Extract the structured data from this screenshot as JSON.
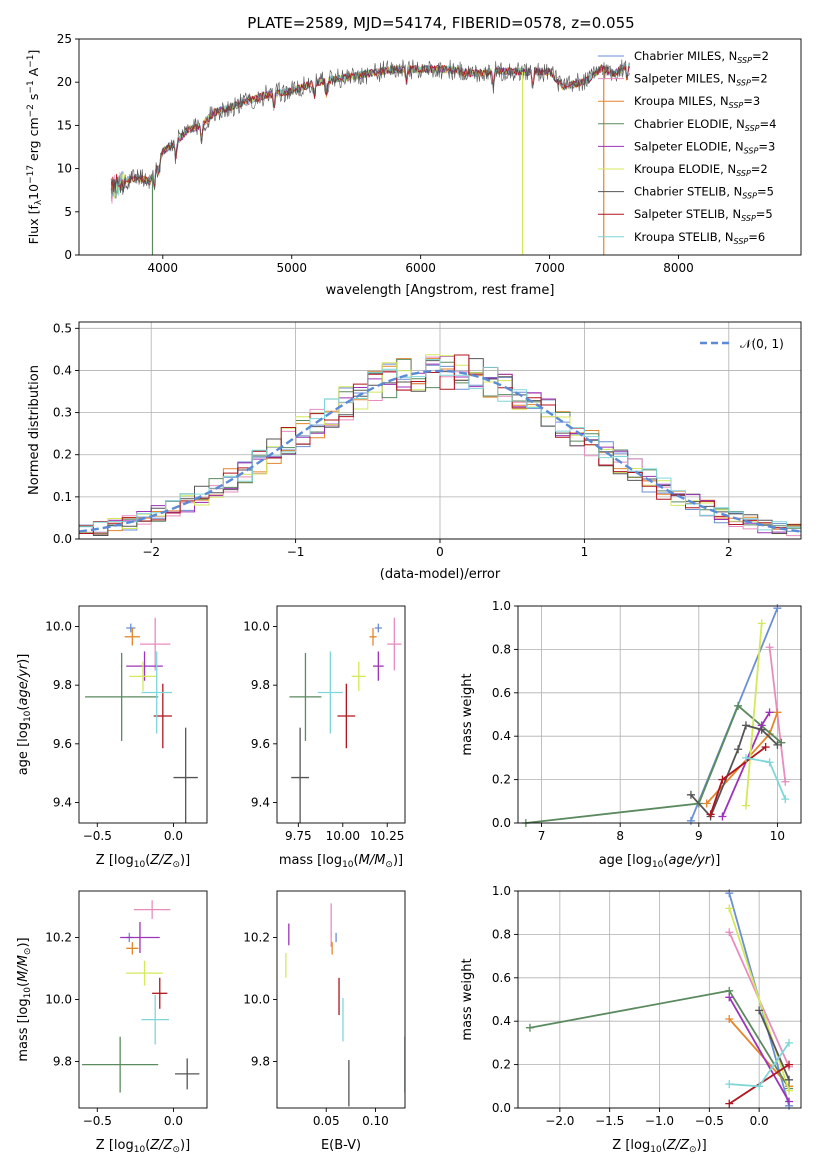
{
  "figure": {
    "title": "PLATE=2589, MJD=54174, FIBERID=0578, z=0.055"
  },
  "series_styles": [
    {
      "name": "Chabrier MILES",
      "nssp": "2",
      "color": "#6a8fd4"
    },
    {
      "name": "Salpeter MILES",
      "nssp": "2",
      "color": "#e88cbf"
    },
    {
      "name": "Kroupa MILES",
      "nssp": "3",
      "color": "#e3862c"
    },
    {
      "name": "Chabrier ELODIE",
      "nssp": "4",
      "color": "#5a8a5e"
    },
    {
      "name": "Salpeter ELODIE",
      "nssp": "3",
      "color": "#9c33b8"
    },
    {
      "name": "Kroupa ELODIE",
      "nssp": "2",
      "color": "#d4e85a"
    },
    {
      "name": "Chabrier STELIB",
      "nssp": "5",
      "color": "#555555"
    },
    {
      "name": "Salpeter STELIB",
      "nssp": "5",
      "color": "#b0151f"
    },
    {
      "name": "Kroupa STELIB",
      "nssp": "6",
      "color": "#7fd6d9"
    }
  ],
  "chart_data": [
    {
      "id": "spectrum",
      "type": "line",
      "xlabel": "wavelength [Angstrom, rest frame]",
      "ylabel": "Flux [f_λ10^-17 erg cm^-2 s^-1 A^-1]",
      "xlim": [
        3350,
        8950
      ],
      "ylim": [
        0,
        25
      ],
      "xticks": [
        4000,
        5000,
        6000,
        7000,
        8000
      ],
      "yticks": [
        0,
        5,
        10,
        15,
        20,
        25
      ],
      "continuum": {
        "x": [
          3600,
          3700,
          3800,
          3900,
          4000,
          4100,
          4200,
          4300,
          4400,
          4500,
          4600,
          4800,
          5000,
          5200,
          5400,
          5600,
          5800,
          6000,
          6200,
          6400,
          6600,
          6800,
          7000,
          7100,
          7200,
          7300,
          7400,
          7500,
          7600
        ],
        "y": [
          7.5,
          8.5,
          9.0,
          8.5,
          12.0,
          13.0,
          14.5,
          15.0,
          16.5,
          17.0,
          17.5,
          18.5,
          19.0,
          20.0,
          20.5,
          21.0,
          21.5,
          21.5,
          21.5,
          21.0,
          21.3,
          21.2,
          21.2,
          19.5,
          19.8,
          20.3,
          21.6,
          21.0,
          22.0
        ]
      },
      "legend": {
        "position": "upper right"
      }
    },
    {
      "id": "residuals",
      "type": "line",
      "xlabel": "(data-model)/error",
      "ylabel": "Normed distribution",
      "xlim": [
        -2.5,
        2.5
      ],
      "ylim": [
        0,
        0.515
      ],
      "xticks": [
        -2,
        -1,
        0,
        1,
        2
      ],
      "yticks": [
        0.0,
        0.1,
        0.2,
        0.3,
        0.4,
        0.5
      ],
      "grid": true,
      "series": [
        {
          "name": "𝒩(0, 1)",
          "style": "dashed",
          "mu": 0,
          "sigma": 1
        }
      ],
      "histograms": "step histograms of residuals, one per model, 50 bins over [-2.5, 2.5], each closely following N(0,1) with noise of about ±0.04",
      "legend": {
        "position": "upper right"
      }
    },
    {
      "id": "age_vs_Z",
      "type": "scatter",
      "xlabel": "Z [log10(Z/Z⊙)]",
      "ylabel": "age [log10(age/yr)]",
      "xlim": [
        -0.62,
        0.22
      ],
      "ylim": [
        9.33,
        10.07
      ],
      "xticks": [
        -0.5,
        0.0
      ],
      "yticks": [
        9.4,
        9.6,
        9.8,
        10.0
      ],
      "points": [
        {
          "model": "Chabrier MILES",
          "x": -0.28,
          "y": 9.995,
          "xerr": 0.03,
          "yerr": 0.015
        },
        {
          "model": "Salpeter MILES",
          "x": -0.12,
          "y": 9.94,
          "xerr": 0.1,
          "yerr": 0.09
        },
        {
          "model": "Kroupa MILES",
          "x": -0.27,
          "y": 9.965,
          "xerr": 0.05,
          "yerr": 0.03
        },
        {
          "model": "Chabrier ELODIE",
          "x": -0.34,
          "y": 9.76,
          "xerr": 0.24,
          "yerr": 0.15
        },
        {
          "model": "Salpeter ELODIE",
          "x": -0.19,
          "y": 9.865,
          "xerr": 0.12,
          "yerr": 0.05
        },
        {
          "model": "Kroupa ELODIE",
          "x": -0.2,
          "y": 9.83,
          "xerr": 0.09,
          "yerr": 0.05
        },
        {
          "model": "Chabrier STELIB",
          "x": 0.08,
          "y": 9.485,
          "xerr": 0.08,
          "yerr": 0.17
        },
        {
          "model": "Salpeter STELIB",
          "x": -0.07,
          "y": 9.695,
          "xerr": 0.06,
          "yerr": 0.11
        },
        {
          "model": "Kroupa STELIB",
          "x": -0.11,
          "y": 9.775,
          "xerr": 0.1,
          "yerr": 0.14
        }
      ]
    },
    {
      "id": "age_vs_mass",
      "type": "scatter",
      "xlabel": "mass [log10(M/M⊙)]",
      "ylabel": "",
      "xlim": [
        9.63,
        10.35
      ],
      "ylim": [
        9.33,
        10.07
      ],
      "xticks": [
        9.75,
        10.0,
        10.25
      ],
      "yticks": [
        9.4,
        9.6,
        9.8,
        10.0
      ],
      "points": [
        {
          "model": "Chabrier MILES",
          "x": 10.2,
          "y": 9.995,
          "xerr": 0.02,
          "yerr": 0.015
        },
        {
          "model": "Salpeter MILES",
          "x": 10.29,
          "y": 9.94,
          "xerr": 0.04,
          "yerr": 0.09
        },
        {
          "model": "Kroupa MILES",
          "x": 10.17,
          "y": 9.965,
          "xerr": 0.02,
          "yerr": 0.03
        },
        {
          "model": "Chabrier ELODIE",
          "x": 9.79,
          "y": 9.76,
          "xerr": 0.09,
          "yerr": 0.15
        },
        {
          "model": "Salpeter ELODIE",
          "x": 10.2,
          "y": 9.865,
          "xerr": 0.03,
          "yerr": 0.05
        },
        {
          "model": "Kroupa ELODIE",
          "x": 10.09,
          "y": 9.83,
          "xerr": 0.04,
          "yerr": 0.05
        },
        {
          "model": "Chabrier STELIB",
          "x": 9.76,
          "y": 9.485,
          "xerr": 0.05,
          "yerr": 0.17
        },
        {
          "model": "Salpeter STELIB",
          "x": 10.02,
          "y": 9.695,
          "xerr": 0.05,
          "yerr": 0.11
        },
        {
          "model": "Kroupa STELIB",
          "x": 9.93,
          "y": 9.775,
          "xerr": 0.07,
          "yerr": 0.14
        }
      ]
    },
    {
      "id": "mass_weight_vs_age",
      "type": "line",
      "xlabel": "age [log10(age/yr)]",
      "ylabel": "mass weight",
      "xlim": [
        6.7,
        10.3
      ],
      "ylim": [
        0,
        1
      ],
      "xticks": [
        7,
        8,
        9,
        10
      ],
      "yticks": [
        0.0,
        0.2,
        0.4,
        0.6,
        0.8,
        1.0
      ],
      "grid": true,
      "series": [
        {
          "model": "Chabrier MILES",
          "x": [
            8.9,
            10.0
          ],
          "y": [
            0.01,
            0.99
          ]
        },
        {
          "model": "Salpeter MILES",
          "x": [
            9.9,
            10.1
          ],
          "y": [
            0.81,
            0.19
          ]
        },
        {
          "model": "Kroupa MILES",
          "x": [
            9.1,
            9.9,
            10.0
          ],
          "y": [
            0.09,
            0.41,
            0.51
          ]
        },
        {
          "model": "Chabrier ELODIE",
          "x": [
            6.8,
            9.0,
            9.5,
            10.05
          ],
          "y": [
            0.0,
            0.09,
            0.54,
            0.37
          ]
        },
        {
          "model": "Salpeter ELODIE",
          "x": [
            9.3,
            9.8,
            9.9
          ],
          "y": [
            0.03,
            0.45,
            0.51
          ]
        },
        {
          "model": "Kroupa ELODIE",
          "x": [
            9.6,
            9.8
          ],
          "y": [
            0.08,
            0.92
          ]
        },
        {
          "model": "Chabrier STELIB",
          "x": [
            8.9,
            9.15,
            9.5,
            9.6,
            9.8,
            10.0
          ],
          "y": [
            0.13,
            0.03,
            0.34,
            0.45,
            0.43,
            0.36
          ]
        },
        {
          "model": "Salpeter STELIB",
          "x": [
            9.15,
            9.3,
            9.85
          ],
          "y": [
            0.04,
            0.2,
            0.35
          ]
        },
        {
          "model": "Kroupa STELIB",
          "x": [
            9.6,
            9.9,
            10.1
          ],
          "y": [
            0.3,
            0.28,
            0.11
          ]
        }
      ]
    },
    {
      "id": "mass_vs_Z",
      "type": "scatter",
      "xlabel": "Z [log10(Z/Z⊙)]",
      "ylabel": "mass [log10(M/M⊙)]",
      "xlim": [
        -0.62,
        0.22
      ],
      "ylim": [
        9.65,
        10.35
      ],
      "xticks": [
        -0.5,
        0.0
      ],
      "yticks": [
        9.8,
        10.0,
        10.2
      ],
      "points": [
        {
          "model": "Chabrier MILES",
          "x": -0.29,
          "y": 10.2,
          "xerr": 0.02,
          "yerr": 0.015
        },
        {
          "model": "Salpeter MILES",
          "x": -0.14,
          "y": 10.29,
          "xerr": 0.12,
          "yerr": 0.03
        },
        {
          "model": "Kroupa MILES",
          "x": -0.27,
          "y": 10.165,
          "xerr": 0.04,
          "yerr": 0.02
        },
        {
          "model": "Chabrier ELODIE",
          "x": -0.35,
          "y": 9.79,
          "xerr": 0.25,
          "yerr": 0.09
        },
        {
          "model": "Salpeter ELODIE",
          "x": -0.22,
          "y": 10.2,
          "xerr": 0.13,
          "yerr": 0.05
        },
        {
          "model": "Kroupa ELODIE",
          "x": -0.19,
          "y": 10.085,
          "xerr": 0.12,
          "yerr": 0.04
        },
        {
          "model": "Chabrier STELIB",
          "x": 0.09,
          "y": 9.76,
          "xerr": 0.08,
          "yerr": 0.05
        },
        {
          "model": "Salpeter STELIB",
          "x": -0.09,
          "y": 10.02,
          "xerr": 0.05,
          "yerr": 0.05
        },
        {
          "model": "Kroupa STELIB",
          "x": -0.12,
          "y": 9.935,
          "xerr": 0.09,
          "yerr": 0.08
        }
      ]
    },
    {
      "id": "mass_vs_ebv",
      "type": "scatter",
      "xlabel": "E(B-V)",
      "ylabel": "",
      "xlim": [
        0.0,
        0.13
      ],
      "ylim": [
        9.65,
        10.35
      ],
      "xticks": [
        0.05,
        0.1
      ],
      "yticks": [
        9.8,
        10.0,
        10.2
      ],
      "points": [
        {
          "model": "Chabrier MILES",
          "x": 0.06,
          "y": 10.2,
          "xerr": 0,
          "yerr": 0.015
        },
        {
          "model": "Salpeter MILES",
          "x": 0.055,
          "y": 10.24,
          "xerr": 0,
          "yerr": 0.07
        },
        {
          "model": "Kroupa MILES",
          "x": 0.056,
          "y": 10.165,
          "xerr": 0,
          "yerr": 0.02
        },
        {
          "model": "Chabrier ELODIE",
          "x": 0.13,
          "y": 9.79,
          "xerr": 0,
          "yerr": 0.09
        },
        {
          "model": "Salpeter ELODIE",
          "x": 0.012,
          "y": 10.21,
          "xerr": 0,
          "yerr": 0.035
        },
        {
          "model": "Kroupa ELODIE",
          "x": 0.009,
          "y": 10.11,
          "xerr": 0,
          "yerr": 0.04
        },
        {
          "model": "Chabrier STELIB",
          "x": 0.073,
          "y": 9.73,
          "xerr": 0,
          "yerr": 0.075
        },
        {
          "model": "Salpeter STELIB",
          "x": 0.063,
          "y": 10.01,
          "xerr": 0,
          "yerr": 0.06
        },
        {
          "model": "Kroupa STELIB",
          "x": 0.067,
          "y": 9.935,
          "xerr": 0,
          "yerr": 0.07
        }
      ]
    },
    {
      "id": "mass_weight_vs_Z",
      "type": "line",
      "xlabel": "Z [log10(Z/Z⊙)]",
      "ylabel": "mass weight",
      "xlim": [
        -2.42,
        0.42
      ],
      "ylim": [
        0,
        1
      ],
      "xticks": [
        -2.0,
        -1.5,
        -1.0,
        -0.5,
        0.0
      ],
      "yticks": [
        0.0,
        0.2,
        0.4,
        0.6,
        0.8,
        1.0
      ],
      "grid": true,
      "series": [
        {
          "model": "Chabrier MILES",
          "x": [
            -0.3,
            0.3
          ],
          "y": [
            0.99,
            0.01
          ]
        },
        {
          "model": "Salpeter MILES",
          "x": [
            -0.3,
            0.3
          ],
          "y": [
            0.81,
            0.19
          ]
        },
        {
          "model": "Kroupa MILES",
          "x": [
            -0.3,
            0.3
          ],
          "y": [
            0.41,
            0.1
          ]
        },
        {
          "model": "Chabrier ELODIE",
          "x": [
            -2.3,
            -0.3,
            0.3
          ],
          "y": [
            0.37,
            0.54,
            0.09
          ]
        },
        {
          "model": "Salpeter ELODIE",
          "x": [
            -0.3,
            0.3
          ],
          "y": [
            0.51,
            0.03
          ]
        },
        {
          "model": "Kroupa ELODIE",
          "x": [
            -0.3,
            0.3
          ],
          "y": [
            0.92,
            0.08
          ]
        },
        {
          "model": "Chabrier STELIB",
          "x": [
            0.0,
            0.3
          ],
          "y": [
            0.45,
            0.13
          ]
        },
        {
          "model": "Salpeter STELIB",
          "x": [
            -0.3,
            0.3
          ],
          "y": [
            0.02,
            0.2
          ]
        },
        {
          "model": "Kroupa STELIB",
          "x": [
            -0.3,
            0.0,
            0.3
          ],
          "y": [
            0.11,
            0.1,
            0.3
          ]
        }
      ]
    }
  ]
}
